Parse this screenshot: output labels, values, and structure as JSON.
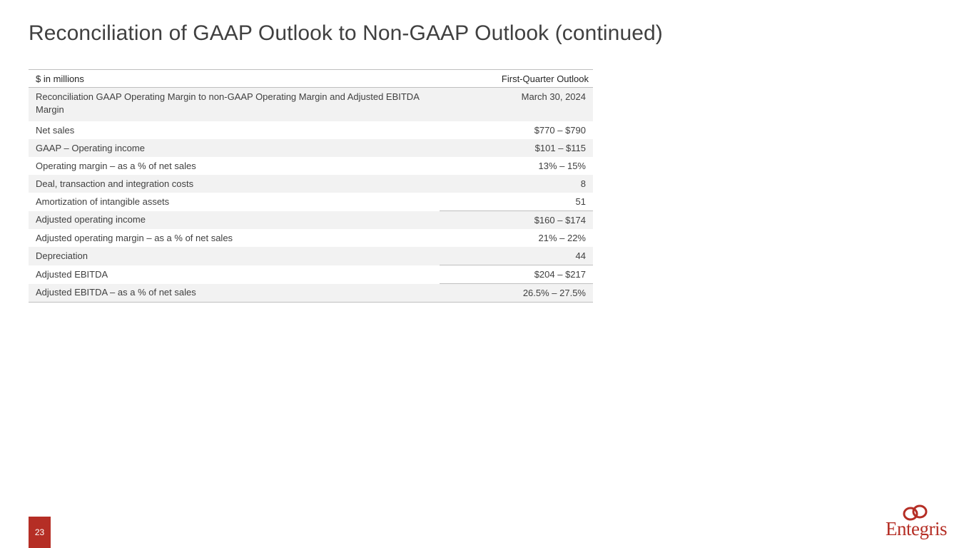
{
  "slide": {
    "title": "Reconciliation of GAAP Outlook to Non-GAAP Outlook (continued)",
    "page_number": "23",
    "logo": {
      "text": "Entegris",
      "icon": "entegris-rings-icon",
      "color": "#b52e25"
    }
  },
  "table": {
    "header": {
      "left": "$ in millions",
      "right": "First-Quarter Outlook"
    },
    "rows": [
      {
        "label": "Reconciliation GAAP Operating Margin to non-GAAP Operating Margin and Adjusted EBITDA Margin",
        "value": "March 30, 2024"
      },
      {
        "label": "Net sales",
        "value": "$770 – $790"
      },
      {
        "label": "GAAP – Operating income",
        "value": "$101 – $115"
      },
      {
        "label": "Operating margin – as a % of net sales",
        "value": "13% – 15%"
      },
      {
        "label": "Deal, transaction and integration costs",
        "value": "8"
      },
      {
        "label": "Amortization of intangible assets",
        "value": "51"
      },
      {
        "label": "Adjusted operating income",
        "value": "$160 – $174"
      },
      {
        "label": "Adjusted operating margin – as a % of net sales",
        "value": "21% – 22%"
      },
      {
        "label": "Depreciation",
        "value": "44"
      },
      {
        "label": "Adjusted EBITDA",
        "value": "$204 – $217"
      },
      {
        "label": "Adjusted EBITDA – as a % of net sales",
        "value": "26.5% – 27.5%"
      }
    ]
  },
  "colors": {
    "accent": "#b52e25",
    "row_shade": "#f2f2f2",
    "rule": "#bfbfbf",
    "text": "#404040"
  }
}
